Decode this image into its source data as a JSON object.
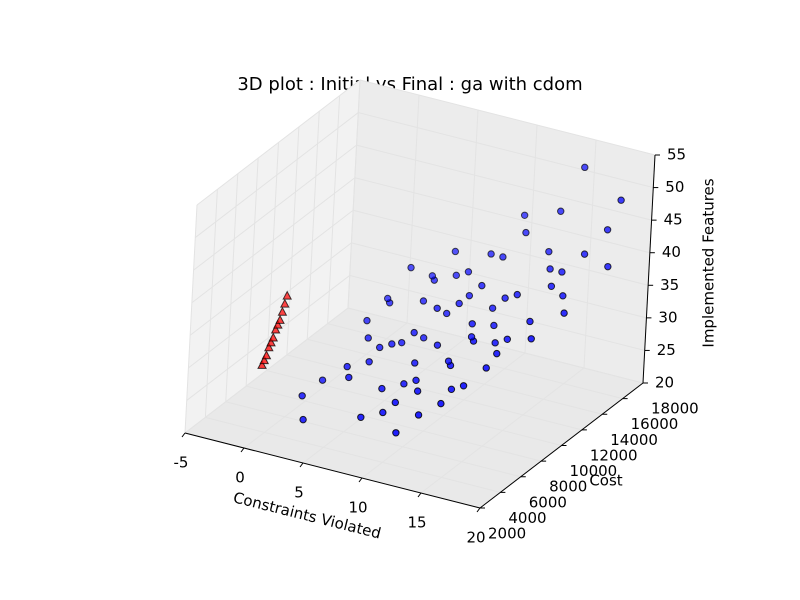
{
  "chart_data": {
    "type": "scatter3d",
    "title": "3D plot : Initial vs Final : ga with cdom",
    "x_label": "Constraints Violated",
    "y_label": "Cost",
    "z_label": "Implemented Features",
    "xlim": [
      -5,
      20
    ],
    "xticks": [
      -5,
      0,
      5,
      10,
      15,
      20
    ],
    "ylim": [
      2000,
      18000
    ],
    "yticks": [
      2000,
      4000,
      6000,
      8000,
      10000,
      12000,
      14000,
      16000,
      18000
    ],
    "zlim": [
      20,
      55
    ],
    "zticks": [
      20,
      25,
      30,
      35,
      40,
      45,
      50,
      55
    ],
    "grid": true,
    "series": [
      {
        "color": "#0000ff",
        "marker": "circle",
        "x": [
          5,
          7,
          9,
          12,
          14,
          3,
          8,
          10,
          11,
          15,
          6,
          13,
          17,
          4,
          9,
          12,
          16,
          18,
          7,
          10,
          8,
          11,
          14,
          5,
          6,
          13,
          15,
          9,
          12,
          10,
          3,
          4,
          7,
          16,
          17,
          11,
          8,
          14,
          9,
          6,
          12,
          13,
          10,
          15,
          18,
          5,
          7,
          11,
          9,
          14,
          8,
          12,
          16,
          10,
          13,
          6,
          4,
          17,
          11,
          9,
          15,
          7,
          12,
          19,
          14,
          10,
          8,
          13,
          5,
          11,
          15,
          19
        ],
        "y": [
          6000,
          8000,
          7000,
          10000,
          12000,
          4000,
          9000,
          11000,
          6000,
          14000,
          5000,
          9000,
          15000,
          3000,
          13000,
          8000,
          11000,
          16000,
          12000,
          5000,
          4000,
          14000,
          7000,
          10000,
          8000,
          12000,
          9000,
          10000,
          15000,
          7000,
          6000,
          9000,
          14000,
          13000,
          10000,
          12000,
          6000,
          16000,
          11000,
          13000,
          5000,
          7000,
          9000,
          10000,
          12000,
          8000,
          11000,
          4000,
          8000,
          15000,
          13000,
          10000,
          14000,
          12000,
          6000,
          7000,
          11000,
          13000,
          16000,
          5000,
          8000,
          9000,
          12000,
          15000,
          10000,
          14000,
          10000,
          11000,
          12000,
          9000,
          17000,
          16000
        ],
        "z": [
          30,
          32,
          28,
          35,
          38,
          27,
          33,
          36,
          29,
          40,
          30,
          34,
          42,
          25,
          38,
          31,
          36,
          45,
          37,
          28,
          26,
          40,
          30,
          35,
          31,
          37,
          33,
          36,
          43,
          29,
          27,
          33,
          39,
          39,
          35,
          38,
          28,
          46,
          34,
          36,
          27,
          29,
          32,
          34,
          37,
          32,
          35,
          25,
          30,
          41,
          37,
          33,
          40,
          36,
          28,
          30,
          34,
          38,
          44,
          26,
          32,
          31,
          35,
          41,
          33,
          40,
          31,
          34,
          38,
          30,
          52,
          50
        ]
      },
      {
        "color": "#ff0000",
        "marker": "triangle",
        "x": [
          0,
          0,
          0,
          0,
          0,
          0,
          0,
          0,
          0,
          0,
          0,
          0
        ],
        "y": [
          3400,
          3600,
          3800,
          4000,
          4200,
          4400,
          4600,
          4800,
          5000,
          5200,
          5400,
          5600
        ],
        "z": [
          31,
          31.5,
          32,
          33,
          33.5,
          34,
          35,
          35.5,
          36,
          37,
          38,
          39
        ]
      }
    ]
  }
}
